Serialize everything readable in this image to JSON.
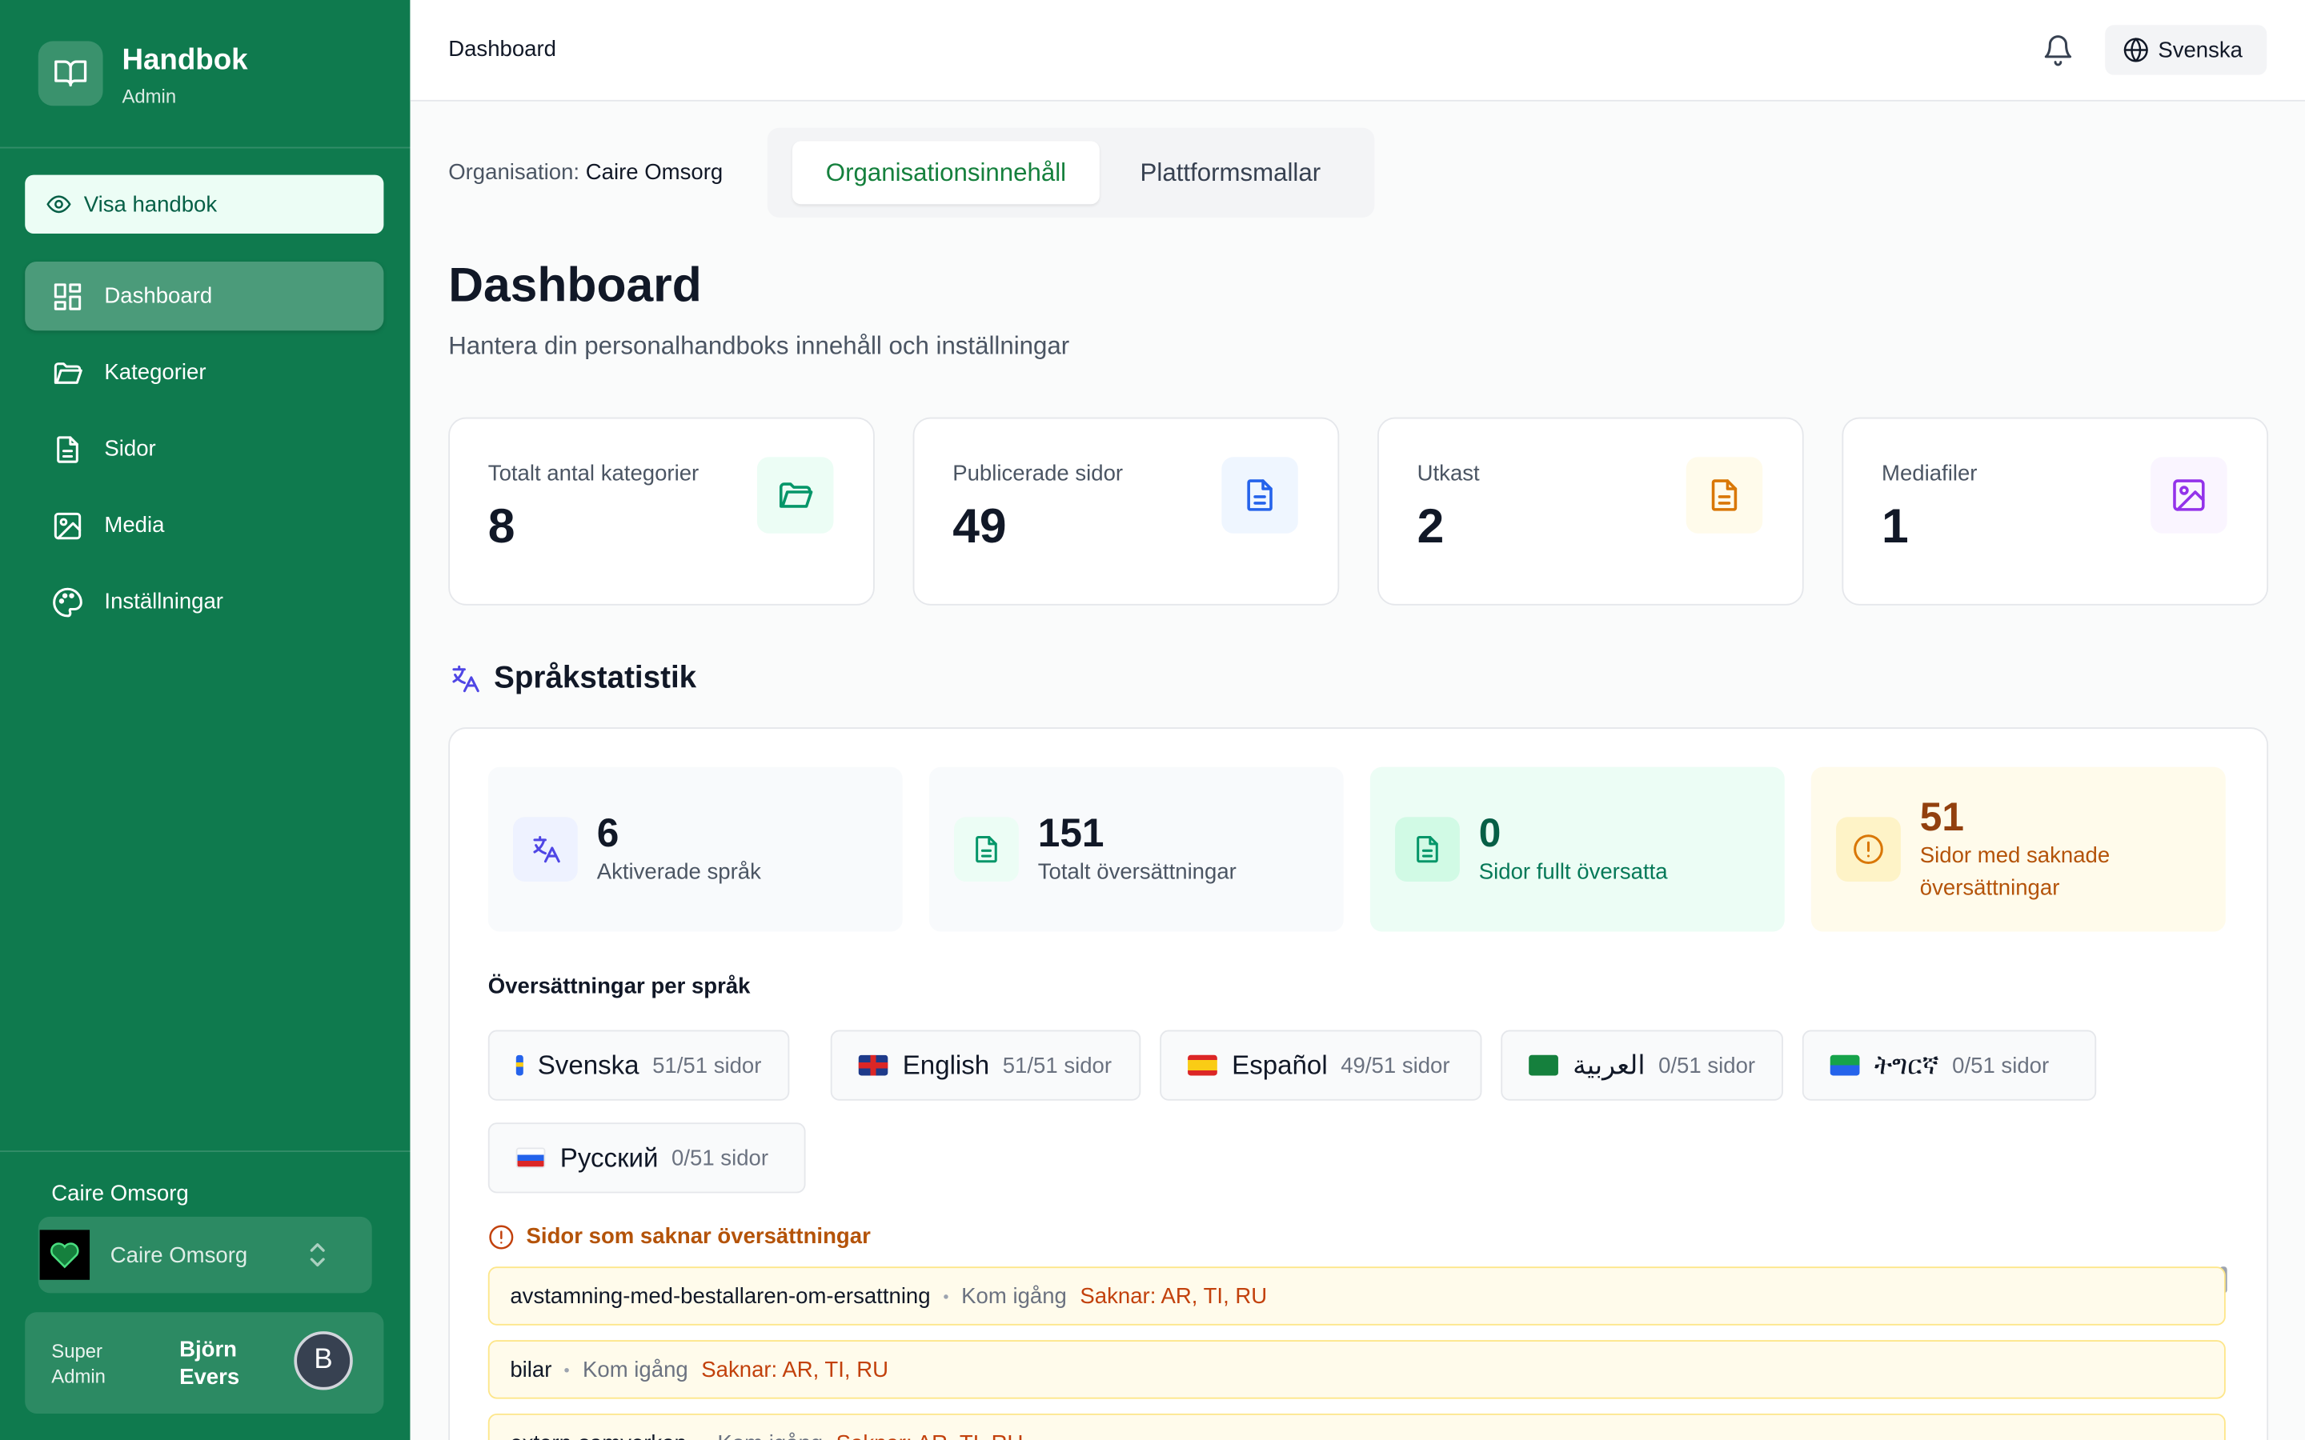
{
  "sidebar": {
    "brand": "Handbok",
    "role": "Admin",
    "view_button": "Visa handbok",
    "nav": [
      "Dashboard",
      "Kategorier",
      "Sidor",
      "Media",
      "Inställningar"
    ],
    "org_label": "Caire Omsorg",
    "org_select": "Caire Omsorg",
    "user_role": "Super Admin",
    "user_name": "Björn Evers",
    "avatar": "B"
  },
  "topbar": {
    "title": "Dashboard",
    "language": "Svenska"
  },
  "org_bar": {
    "label": "Organisation:",
    "org": "Caire Omsorg",
    "tabs": [
      "Organisationsinnehåll",
      "Plattformsmallar"
    ]
  },
  "header": {
    "title": "Dashboard",
    "subtitle": "Hantera din personalhandboks innehåll och inställningar"
  },
  "stats": [
    {
      "label": "Totalt antal kategorier",
      "value": "8"
    },
    {
      "label": "Publicerade sidor",
      "value": "49"
    },
    {
      "label": "Utkast",
      "value": "2"
    },
    {
      "label": "Mediafiler",
      "value": "1"
    }
  ],
  "language_stats": {
    "title": "Språkstatistik",
    "summary": [
      {
        "value": "6",
        "label": "Aktiverade språk"
      },
      {
        "value": "151",
        "label": "Totalt översättningar"
      },
      {
        "value": "0",
        "label": "Sidor fullt översatta"
      },
      {
        "value": "51",
        "label": "Sidor med saknade översättningar"
      }
    ],
    "per_language_title": "Översättningar per språk",
    "languages": [
      {
        "name": "Svenska",
        "count": "51/51 sidor"
      },
      {
        "name": "English",
        "count": "51/51 sidor"
      },
      {
        "name": "Español",
        "count": "49/51 sidor"
      },
      {
        "name": "العربية",
        "count": "0/51 sidor"
      },
      {
        "name": "ትግርኛ",
        "count": "0/51 sidor"
      },
      {
        "name": "Русский",
        "count": "0/51 sidor"
      }
    ],
    "missing_title": "Sidor som saknar översättningar",
    "missing": [
      {
        "slug": "avstamning-med-bestallaren-om-ersattning",
        "category": "Kom igång",
        "missing": "Saknar: AR, TI, RU"
      },
      {
        "slug": "bilar",
        "category": "Kom igång",
        "missing": "Saknar: AR, TI, RU"
      },
      {
        "slug": "extern-samverkan",
        "category": "Kom igång",
        "missing": "Saknar: AR, TI, RU"
      }
    ]
  }
}
